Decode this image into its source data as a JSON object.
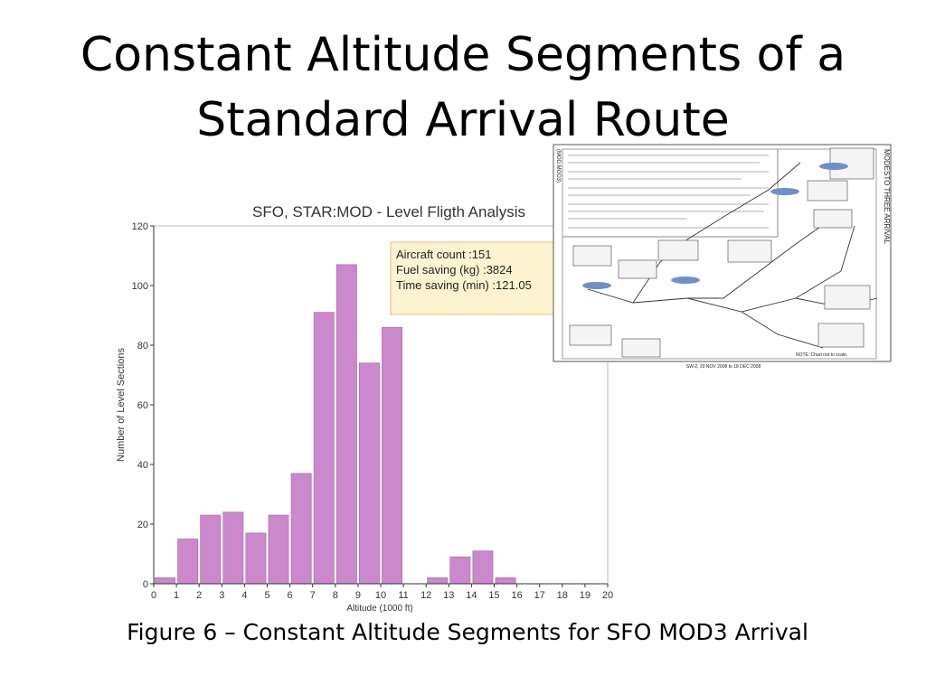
{
  "slide": {
    "title": [
      "Constant Altitude Segments of a",
      "Standard Arrival Route"
    ],
    "caption": "Figure 6 –  Constant Altitude Segments for SFO MOD3 Arrival"
  },
  "chart_data": {
    "type": "histogram",
    "title": "SFO, STAR:MOD - Level Fligth Analysis",
    "x_label": "Altitude (1000 ft)",
    "y_label": "Number of Level Sections",
    "bins": [
      0,
      1,
      2,
      3,
      4,
      5,
      6,
      7,
      8,
      9,
      10,
      11,
      12,
      13,
      14,
      15,
      16,
      17,
      18,
      19,
      20
    ],
    "counts": [
      2,
      15,
      23,
      24,
      17,
      23,
      37,
      91,
      107,
      74,
      86,
      0,
      2,
      9,
      11,
      2,
      0,
      0,
      0,
      0
    ],
    "color": "#cc88cc",
    "xlim": [
      0,
      20
    ],
    "xticks": [
      0,
      1,
      2,
      3,
      4,
      5,
      6,
      7,
      8,
      9,
      10,
      11,
      12,
      13,
      14,
      15,
      16,
      17,
      18,
      19,
      20
    ],
    "ylim": [
      0,
      120
    ],
    "yticks": [
      0,
      20,
      40,
      60,
      80,
      100,
      120
    ],
    "annotations": [
      "Aircraft count :151",
      "Fuel saving (kg) :3824",
      "Time saving (min) :121.05"
    ]
  },
  "inset": {
    "side_title": "MODESTO THREE ARRIVAL",
    "side_code": "(MOD.MOD3)",
    "note": "NOTE: Chart not to scale.",
    "footer": "SW-2, 20 NOV 2008 to 18 DEC 2008"
  }
}
